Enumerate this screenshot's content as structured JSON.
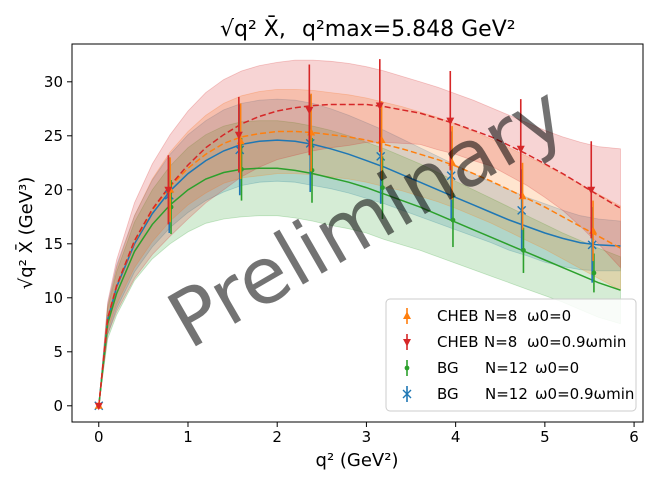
{
  "chart_data": {
    "type": "line",
    "title": {
      "part1": "√q² X̄,",
      "part2": "q²max=5.848 GeV²"
    },
    "xlabel": "q² (GeV²)",
    "ylabel": "√q² X̄ (GeV³)",
    "xlim": [
      -0.3,
      6.1
    ],
    "ylim": [
      -1.5,
      33.5
    ],
    "xticks": [
      0,
      1,
      2,
      3,
      4,
      5,
      6
    ],
    "yticks": [
      0,
      5,
      10,
      15,
      20,
      25,
      30
    ],
    "grid": false,
    "legend_position": "lower-right",
    "watermark": "Preliminary",
    "series": [
      {
        "name": "BG N=12 ω0=0.9ωmin",
        "legend": {
          "prefix": "BG",
          "n": "N=12",
          "omega": "ω0=0.9ωmin"
        },
        "color": "#1f77b4",
        "marker": "x",
        "linestyle": "solid",
        "curve_x": [
          0,
          0.1,
          0.2,
          0.4,
          0.6,
          0.8,
          1.0,
          1.2,
          1.4,
          1.6,
          1.8,
          2.0,
          2.2,
          2.4,
          2.6,
          2.8,
          3.0,
          3.2,
          3.4,
          3.6,
          3.8,
          4.0,
          4.2,
          4.4,
          4.6,
          4.8,
          5.0,
          5.2,
          5.4,
          5.6,
          5.848
        ],
        "curve_y": [
          0,
          8.0,
          11.0,
          15.0,
          17.8,
          19.9,
          21.5,
          22.7,
          23.6,
          24.2,
          24.5,
          24.6,
          24.5,
          24.2,
          23.8,
          23.3,
          22.7,
          22.1,
          21.4,
          20.7,
          20.0,
          19.3,
          18.6,
          17.9,
          17.2,
          16.6,
          16.0,
          15.5,
          15.1,
          14.9,
          14.8
        ],
        "band_upper": [
          0,
          9.4,
          13.0,
          17.6,
          20.9,
          23.3,
          25.1,
          26.4,
          27.4,
          28.0,
          28.3,
          28.4,
          28.3,
          28.0,
          27.5,
          26.9,
          26.2,
          25.5,
          24.7,
          23.9,
          23.1,
          22.3,
          21.5,
          20.7,
          20.0,
          19.3,
          18.7,
          18.1,
          17.6,
          17.3,
          17.1
        ],
        "band_lower": [
          0,
          6.6,
          9.0,
          12.4,
          14.7,
          16.5,
          17.9,
          19.0,
          19.8,
          20.4,
          20.7,
          20.8,
          20.7,
          20.4,
          20.1,
          19.7,
          19.2,
          18.7,
          18.1,
          17.5,
          16.9,
          16.3,
          15.7,
          15.1,
          14.4,
          13.9,
          13.3,
          12.9,
          12.6,
          12.5,
          12.5
        ],
        "points_x": [
          0,
          0.79,
          1.58,
          2.37,
          3.16,
          3.95,
          4.74,
          5.53
        ],
        "points_y": [
          0,
          19.5,
          23.7,
          24.3,
          23.1,
          21.3,
          18.1,
          14.9
        ],
        "err": [
          0,
          3.5,
          4.2,
          4.5,
          4.4,
          4.1,
          3.8,
          3.5
        ]
      },
      {
        "name": "BG N=12 ω0=0",
        "legend": {
          "prefix": "BG",
          "n": "N=12",
          "omega": "ω0=0"
        },
        "color": "#2ca02c",
        "marker": "dot",
        "linestyle": "solid",
        "curve_x": [
          0,
          0.1,
          0.2,
          0.4,
          0.6,
          0.8,
          1.0,
          1.2,
          1.4,
          1.6,
          1.8,
          2.0,
          2.2,
          2.4,
          2.6,
          2.8,
          3.0,
          3.2,
          3.4,
          3.6,
          3.8,
          4.0,
          4.2,
          4.4,
          4.6,
          4.8,
          5.0,
          5.2,
          5.4,
          5.6,
          5.848
        ],
        "curve_y": [
          0,
          7.6,
          10.4,
          14.3,
          16.8,
          18.6,
          20.0,
          21.0,
          21.6,
          21.9,
          22.0,
          22.0,
          21.8,
          21.5,
          21.1,
          20.7,
          20.2,
          19.6,
          19.0,
          18.4,
          17.7,
          17.0,
          16.3,
          15.6,
          14.9,
          14.2,
          13.5,
          12.8,
          12.1,
          11.4,
          10.7
        ],
        "band_upper": [
          0,
          9.0,
          12.4,
          17.0,
          20.0,
          22.2,
          23.9,
          25.1,
          25.9,
          26.3,
          26.4,
          26.4,
          26.2,
          25.9,
          25.5,
          25.0,
          24.4,
          23.8,
          23.1,
          22.4,
          21.6,
          20.8,
          20.0,
          19.2,
          18.4,
          17.6,
          16.8,
          16.0,
          15.3,
          14.6,
          13.8
        ],
        "band_lower": [
          0,
          6.2,
          8.4,
          11.6,
          13.6,
          15.0,
          16.1,
          16.9,
          17.3,
          17.5,
          17.6,
          17.6,
          17.4,
          17.1,
          16.7,
          16.4,
          16.0,
          15.4,
          14.9,
          14.4,
          13.8,
          13.2,
          12.6,
          12.0,
          11.4,
          10.8,
          10.2,
          9.6,
          8.9,
          8.2,
          7.6
        ],
        "points_x": [
          0,
          0.81,
          1.6,
          2.39,
          3.18,
          3.97,
          4.76,
          5.55
        ],
        "points_y": [
          0,
          18.4,
          21.9,
          21.8,
          20.2,
          17.2,
          14.4,
          12.3
        ],
        "err": [
          0,
          2.5,
          2.9,
          3.0,
          2.9,
          2.5,
          2.1,
          1.8
        ]
      },
      {
        "name": "CHEB N=8 ω0=0",
        "legend": {
          "prefix": "CHEB",
          "n": "N=8",
          "omega": "ω0=0"
        },
        "color": "#ff7f0e",
        "marker": "triangle-up",
        "linestyle": "dashed",
        "curve_x": [
          0,
          0.1,
          0.2,
          0.4,
          0.6,
          0.8,
          1.0,
          1.2,
          1.4,
          1.6,
          1.8,
          2.0,
          2.2,
          2.4,
          2.6,
          2.8,
          3.0,
          3.2,
          3.4,
          3.6,
          3.8,
          4.0,
          4.2,
          4.4,
          4.6,
          4.8,
          5.0,
          5.2,
          5.4,
          5.6,
          5.848
        ],
        "curve_y": [
          0,
          8.1,
          11.1,
          15.2,
          18.1,
          20.3,
          22.0,
          23.3,
          24.3,
          24.9,
          25.2,
          25.4,
          25.4,
          25.3,
          25.1,
          24.9,
          24.6,
          24.2,
          23.8,
          23.3,
          22.8,
          22.2,
          21.5,
          20.8,
          20.0,
          19.2,
          18.4,
          17.5,
          16.6,
          15.7,
          14.6
        ],
        "band_upper": [
          0,
          9.2,
          12.8,
          17.6,
          21.0,
          23.5,
          25.4,
          26.9,
          28.0,
          28.7,
          29.1,
          29.3,
          29.3,
          29.2,
          29.0,
          28.8,
          28.5,
          28.1,
          27.7,
          27.2,
          26.7,
          26.1,
          25.4,
          24.7,
          23.9,
          23.1,
          22.3,
          21.4,
          20.5,
          19.6,
          18.5
        ],
        "band_lower": [
          0,
          7.0,
          9.4,
          12.8,
          15.2,
          17.1,
          18.6,
          19.7,
          20.6,
          21.1,
          21.3,
          21.5,
          21.5,
          21.4,
          21.2,
          21.0,
          20.7,
          20.3,
          19.9,
          19.4,
          18.9,
          18.3,
          17.6,
          16.9,
          16.1,
          15.3,
          14.5,
          13.6,
          12.7,
          11.8,
          10.7
        ],
        "points_x": [
          0,
          0.8,
          1.59,
          2.38,
          3.17,
          3.96,
          4.75,
          5.54
        ],
        "points_y": [
          0,
          20.0,
          24.5,
          25.3,
          24.6,
          22.5,
          19.4,
          16.2
        ],
        "err": [
          0,
          3.0,
          3.5,
          3.6,
          3.6,
          3.4,
          3.1,
          2.8
        ]
      },
      {
        "name": "CHEB N=8 ω0=0.9ωmin",
        "legend": {
          "prefix": "CHEB",
          "n": "N=8",
          "omega": "ω0=0.9ωmin"
        },
        "color": "#d62728",
        "marker": "triangle-down",
        "linestyle": "dashed",
        "curve_x": [
          0,
          0.1,
          0.2,
          0.4,
          0.6,
          0.8,
          1.0,
          1.2,
          1.4,
          1.6,
          1.8,
          2.0,
          2.2,
          2.4,
          2.6,
          2.8,
          3.0,
          3.2,
          3.4,
          3.6,
          3.8,
          4.0,
          4.2,
          4.4,
          4.6,
          4.8,
          5.0,
          5.2,
          5.4,
          5.6,
          5.848
        ],
        "curve_y": [
          0,
          8.1,
          11.1,
          15.3,
          18.2,
          20.4,
          22.3,
          23.9,
          25.1,
          26.1,
          26.8,
          27.3,
          27.6,
          27.8,
          27.9,
          27.9,
          27.9,
          27.7,
          27.4,
          27.1,
          26.6,
          26.1,
          25.5,
          24.9,
          24.1,
          23.3,
          22.4,
          21.5,
          20.5,
          19.5,
          18.3
        ],
        "band_upper": [
          0,
          9.6,
          13.5,
          18.8,
          22.4,
          25.1,
          27.3,
          29.0,
          30.2,
          31.0,
          31.5,
          31.8,
          32.0,
          32.0,
          31.9,
          31.7,
          31.4,
          31.0,
          30.5,
          30.0,
          29.5,
          28.9,
          28.3,
          27.6,
          26.9,
          26.2,
          25.5,
          24.9,
          24.4,
          24.0,
          23.8
        ],
        "band_lower": [
          0,
          6.6,
          8.7,
          11.8,
          14.0,
          15.7,
          17.3,
          18.8,
          20.0,
          21.2,
          22.1,
          22.8,
          23.2,
          23.6,
          23.9,
          24.1,
          24.4,
          24.4,
          24.3,
          24.2,
          23.7,
          23.3,
          22.7,
          22.2,
          21.3,
          20.4,
          19.3,
          18.1,
          16.6,
          15.0,
          12.8
        ],
        "points_x": [
          0,
          0.78,
          1.57,
          2.36,
          3.15,
          3.94,
          4.73,
          5.52
        ],
        "points_y": [
          0,
          20.0,
          25.1,
          27.4,
          27.8,
          26.4,
          23.8,
          20.0
        ],
        "err": [
          0,
          3.2,
          3.5,
          4.2,
          4.3,
          4.6,
          4.6,
          4.5
        ]
      }
    ]
  }
}
